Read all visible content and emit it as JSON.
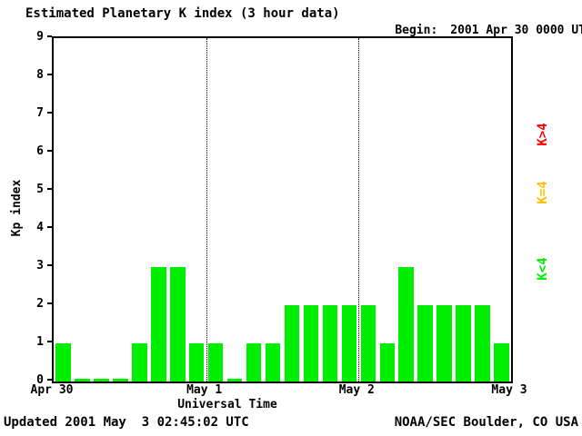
{
  "header": {
    "title": "Estimated Planetary K index (3 hour data)",
    "begin_label": "Begin:",
    "begin_value": "2001 Apr 30 0000 UTC"
  },
  "chart_data": {
    "type": "bar",
    "title": "Estimated Planetary K index (3 hour data)",
    "xlabel": "Universal Time",
    "ylabel": "Kp index",
    "ylim": [
      0,
      9
    ],
    "yticks": [
      0,
      1,
      2,
      3,
      4,
      5,
      6,
      7,
      8,
      9
    ],
    "xticks": [
      "Apr 30",
      "May 1",
      "May 2",
      "May 3"
    ],
    "dotted_vlines": [
      1,
      2
    ],
    "bin_hours": 3,
    "begin": "2001 Apr 30 0000 UTC",
    "values": [
      1,
      0,
      0,
      0,
      1,
      3,
      3,
      1,
      1,
      0,
      1,
      1,
      2,
      2,
      2,
      2,
      2,
      1,
      3,
      2,
      2,
      2,
      2,
      1
    ],
    "colors": {
      "k_lt4": "#00ee00",
      "k_eq4": "#ffc000",
      "k_gt4": "#ff0000"
    }
  },
  "legend": {
    "items": [
      {
        "label": "K>4",
        "color": "#ff0000"
      },
      {
        "label": "K=4",
        "color": "#ffc000"
      },
      {
        "label": "K<4",
        "color": "#00ee00"
      }
    ]
  },
  "footer": {
    "updated": "Updated 2001 May  3 02:45:02 UTC",
    "source": "NOAA/SEC Boulder, CO USA"
  }
}
